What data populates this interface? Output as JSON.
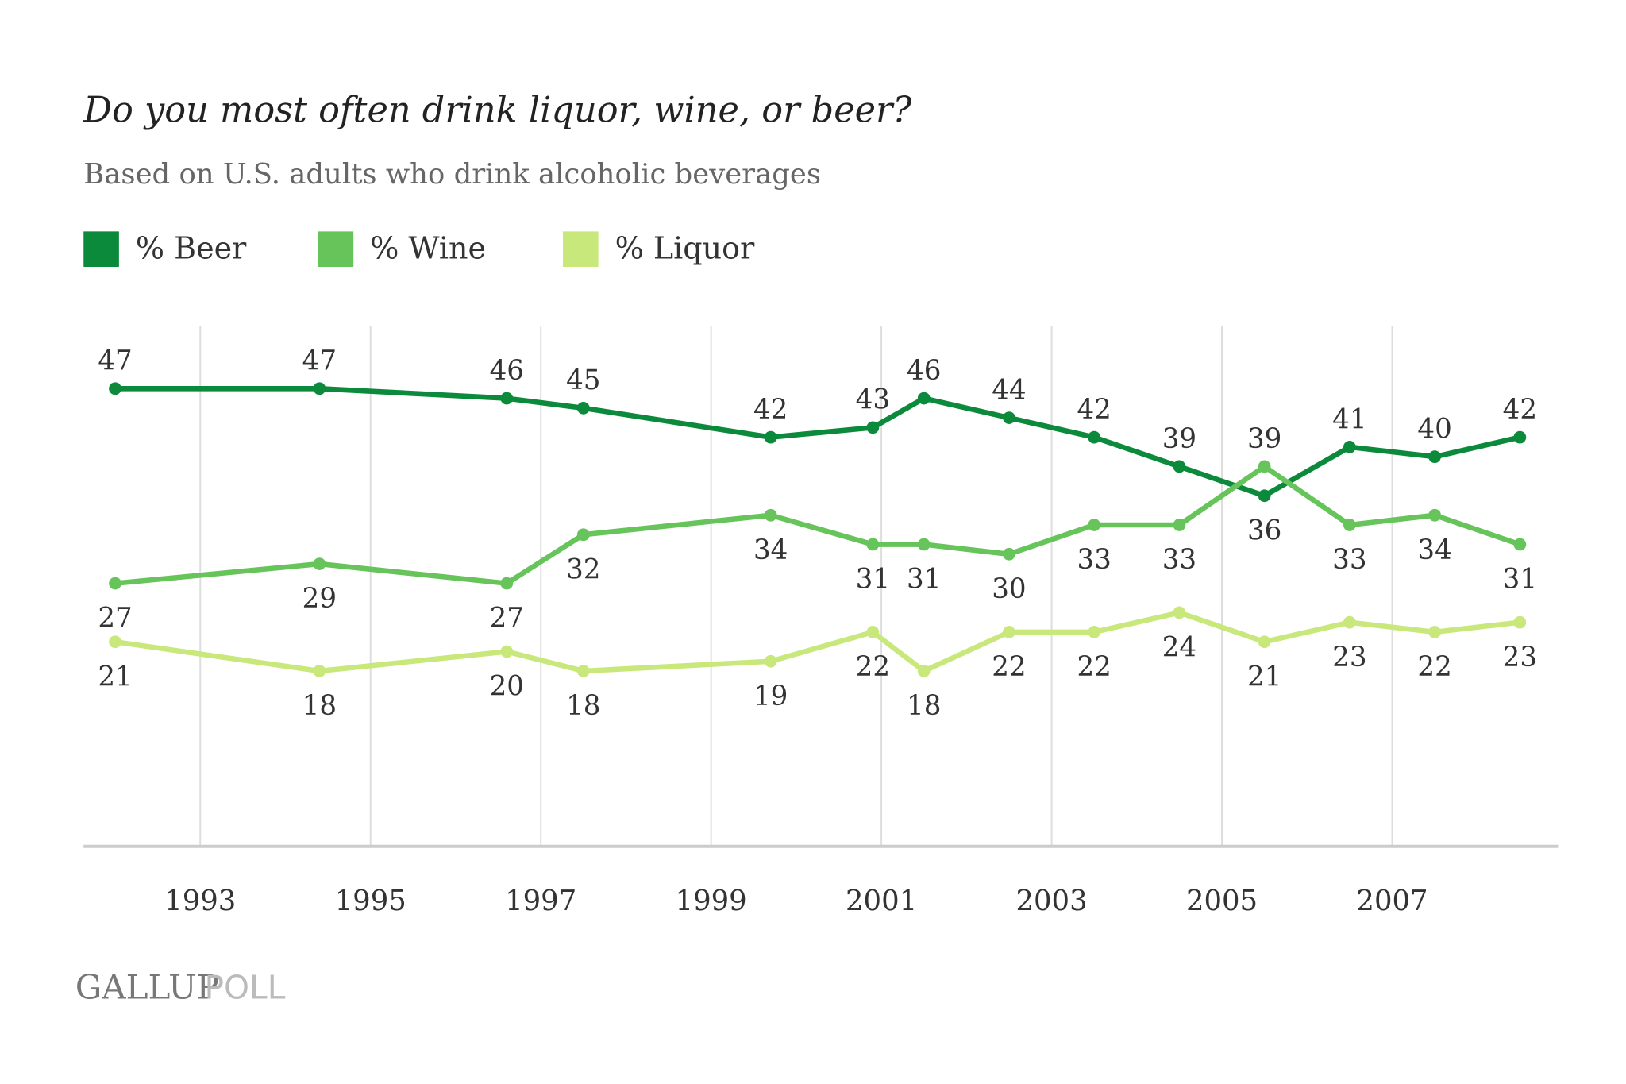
{
  "chart_data": {
    "type": "line",
    "title": "Do you most often drink liquor, wine, or beer?",
    "subtitle": "Based on U.S. adults who drink alcoholic beverages",
    "x": [
      1992.0,
      1994.4,
      1996.6,
      1997.5,
      1999.7,
      2000.9,
      2001.5,
      2002.5,
      2003.5,
      2004.5,
      2005.5,
      2006.5,
      2007.5,
      2008.5
    ],
    "xticks": [
      "1993",
      "1995",
      "1997",
      "1999",
      "2001",
      "2003",
      "2005",
      "2007"
    ],
    "xlim": [
      1991.7,
      2008.9
    ],
    "ylim": [
      0,
      53
    ],
    "grid": "vertical",
    "legend_placement": "top-left",
    "series": [
      {
        "name": "% Beer",
        "color": "#0b8a3c",
        "values": [
          47,
          47,
          46,
          45,
          42,
          43,
          46,
          44,
          42,
          39,
          36,
          41,
          40,
          42
        ]
      },
      {
        "name": "% Wine",
        "color": "#66c45a",
        "values": [
          27,
          29,
          27,
          32,
          34,
          31,
          31,
          30,
          33,
          33,
          39,
          33,
          34,
          31
        ]
      },
      {
        "name": "% Liquor",
        "color": "#c9e87c",
        "values": [
          21,
          18,
          20,
          18,
          19,
          22,
          18,
          22,
          22,
          24,
          21,
          23,
          22,
          23
        ]
      }
    ]
  },
  "footer": {
    "logo_text": "GALLUP POLL"
  }
}
